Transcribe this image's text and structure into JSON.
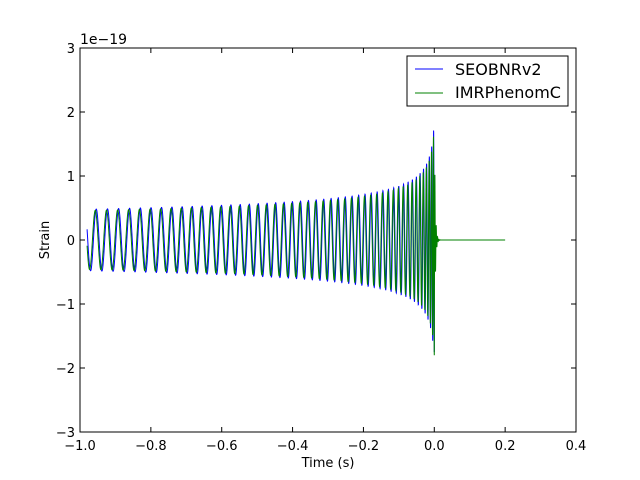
{
  "chart_data": {
    "type": "line",
    "title": "",
    "xlabel": "Time (s)",
    "ylabel": "Strain",
    "offset_label": "1e−19",
    "xlim": [
      -1.0,
      0.4
    ],
    "ylim": [
      -3,
      3
    ],
    "x_ticks": [
      -1.0,
      -0.8,
      -0.6,
      -0.4,
      -0.2,
      0.0,
      0.2,
      0.4
    ],
    "x_tick_labels": [
      "−1.0",
      "−0.8",
      "−0.6",
      "−0.4",
      "−0.2",
      "0.0",
      "0.2",
      "0.4"
    ],
    "y_ticks": [
      -3,
      -2,
      -1,
      0,
      1,
      2,
      3
    ],
    "y_tick_labels": [
      "−3",
      "−2",
      "−1",
      "0",
      "1",
      "2",
      "3"
    ],
    "grid": false,
    "legend": "top-right",
    "series": [
      {
        "name": "SEOBNRv2",
        "color": "#0000ff",
        "t_start": -0.98,
        "t_merger": 0.0,
        "t_end": 0.0,
        "amp_start": 0.48,
        "amp_peak": 2.1,
        "cycles_visible": 61
      },
      {
        "name": "IMRPhenomC",
        "color": "#008000",
        "t_start": -0.98,
        "t_merger": 0.0,
        "t_end": 0.2,
        "amp_start": 0.46,
        "amp_peak": 2.05,
        "cycles_visible": 61
      }
    ]
  }
}
